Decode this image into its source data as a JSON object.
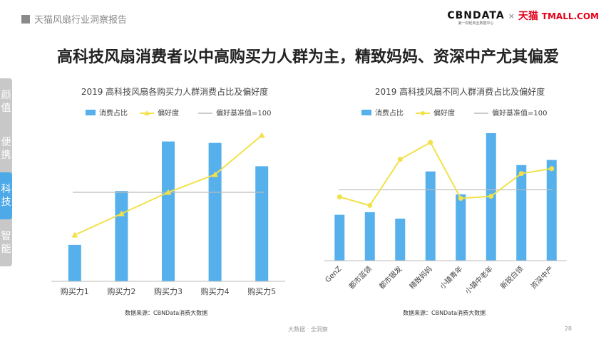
{
  "header": {
    "title": "天猫风扇行业洞察报告"
  },
  "brand": {
    "cbn_name": "CBNDATA",
    "cbn_sub": "第一财经商业数据中心",
    "separator": "×",
    "tmall_cn": "天猫",
    "tmall_en": "TMALL.COM"
  },
  "main_title": "高科技风扇消费者以中高购买力人群为主，精致妈妈、资深中产尤其偏爱",
  "sidebar": {
    "items": [
      {
        "chars": [
          "颜",
          "值"
        ],
        "active": false
      },
      {
        "chars": [
          "便",
          "携"
        ],
        "active": false
      },
      {
        "chars": [
          "科",
          "技"
        ],
        "active": true
      },
      {
        "chars": [
          "智",
          "能"
        ],
        "active": false
      }
    ]
  },
  "colors": {
    "bar": "#56b0ec",
    "line": "#f2e14b",
    "baseline": "#bbbbbb",
    "active_tab": "#4da9e8"
  },
  "chart_data": [
    {
      "type": "bar+line",
      "title": "2019 高科技风扇各购买力人群消费占比及偏好度",
      "legend": [
        "消费占比",
        "偏好度",
        "偏好基准值=100"
      ],
      "categories": [
        "购买力1",
        "购买力2",
        "购买力3",
        "购买力4",
        "购买力5"
      ],
      "series": [
        {
          "name": "消费占比",
          "kind": "bar",
          "values": [
            25,
            62,
            96,
            95,
            79
          ]
        },
        {
          "name": "偏好度",
          "kind": "line",
          "marker": "triangle",
          "values": [
            52,
            76,
            100,
            120,
            164
          ]
        }
      ],
      "baseline": 100,
      "ylim_bar": [
        0,
        110
      ],
      "ylim_line": [
        0,
        180
      ],
      "source": "数据来源：CBNData消费大数据"
    },
    {
      "type": "bar+line",
      "title": "2019 高科技风扇不同人群消费占比及偏好度",
      "legend": [
        "消费占比",
        "偏好度",
        "偏好基准值=100"
      ],
      "categories": [
        "GenZ",
        "都市蓝领",
        "都市银发",
        "精致妈妈",
        "小镇青年",
        "小镇中老年",
        "新锐白领",
        "资深中产"
      ],
      "series": [
        {
          "name": "消费占比",
          "kind": "bar",
          "values": [
            36,
            38,
            33,
            70,
            52,
            100,
            75,
            79
          ]
        },
        {
          "name": "偏好度",
          "kind": "line",
          "marker": "circle",
          "values": [
            90,
            78,
            143,
            167,
            88,
            91,
            123,
            130
          ]
        }
      ],
      "baseline": 100,
      "ylim_bar": [
        0,
        100
      ],
      "ylim_line": [
        0,
        180
      ],
      "source": "数据来源：CBNData消费大数据"
    }
  ],
  "footer": {
    "text": "大数据 · 全洞察",
    "page_number": "28"
  }
}
